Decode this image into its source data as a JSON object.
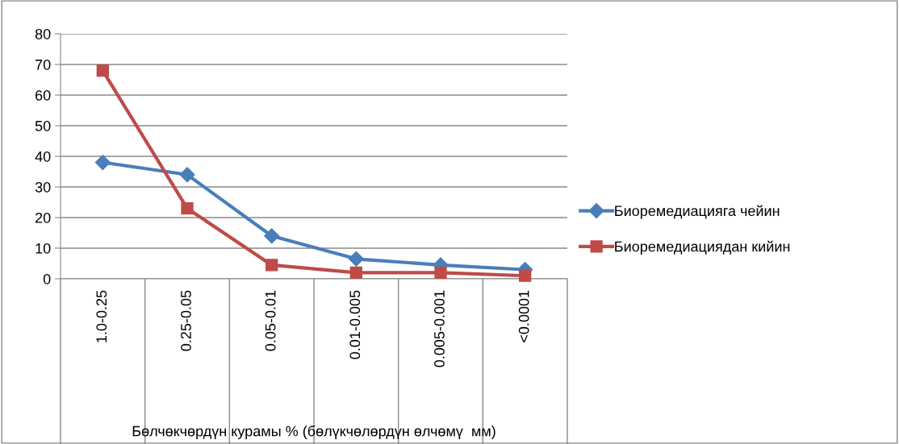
{
  "chart_data": {
    "type": "line",
    "xlabel": "Бөлчөкчөрдүн курамы % (бөлүкчөлөрдүн өлчөмү  мм)",
    "categories": [
      "1.0-0.25",
      "0.25-0.05",
      "0.05-0.01",
      "0.01-0.005",
      "0.005-0.001",
      "<0.0001"
    ],
    "series": [
      {
        "name": "Биоремедиацияга чейин",
        "color": "#4a7ebb",
        "marker": "diamond",
        "values": [
          38,
          34,
          14,
          6.5,
          4.5,
          3
        ]
      },
      {
        "name": "Биоремедиациядан кийин",
        "color": "#be4b48",
        "marker": "square",
        "values": [
          68,
          23,
          4.5,
          2,
          2,
          1
        ]
      }
    ],
    "ylim": [
      0,
      80
    ],
    "yticks": [
      0,
      10,
      20,
      30,
      40,
      50,
      60,
      70,
      80
    ],
    "grid": "y",
    "legend": "right",
    "line_style": "solid"
  }
}
